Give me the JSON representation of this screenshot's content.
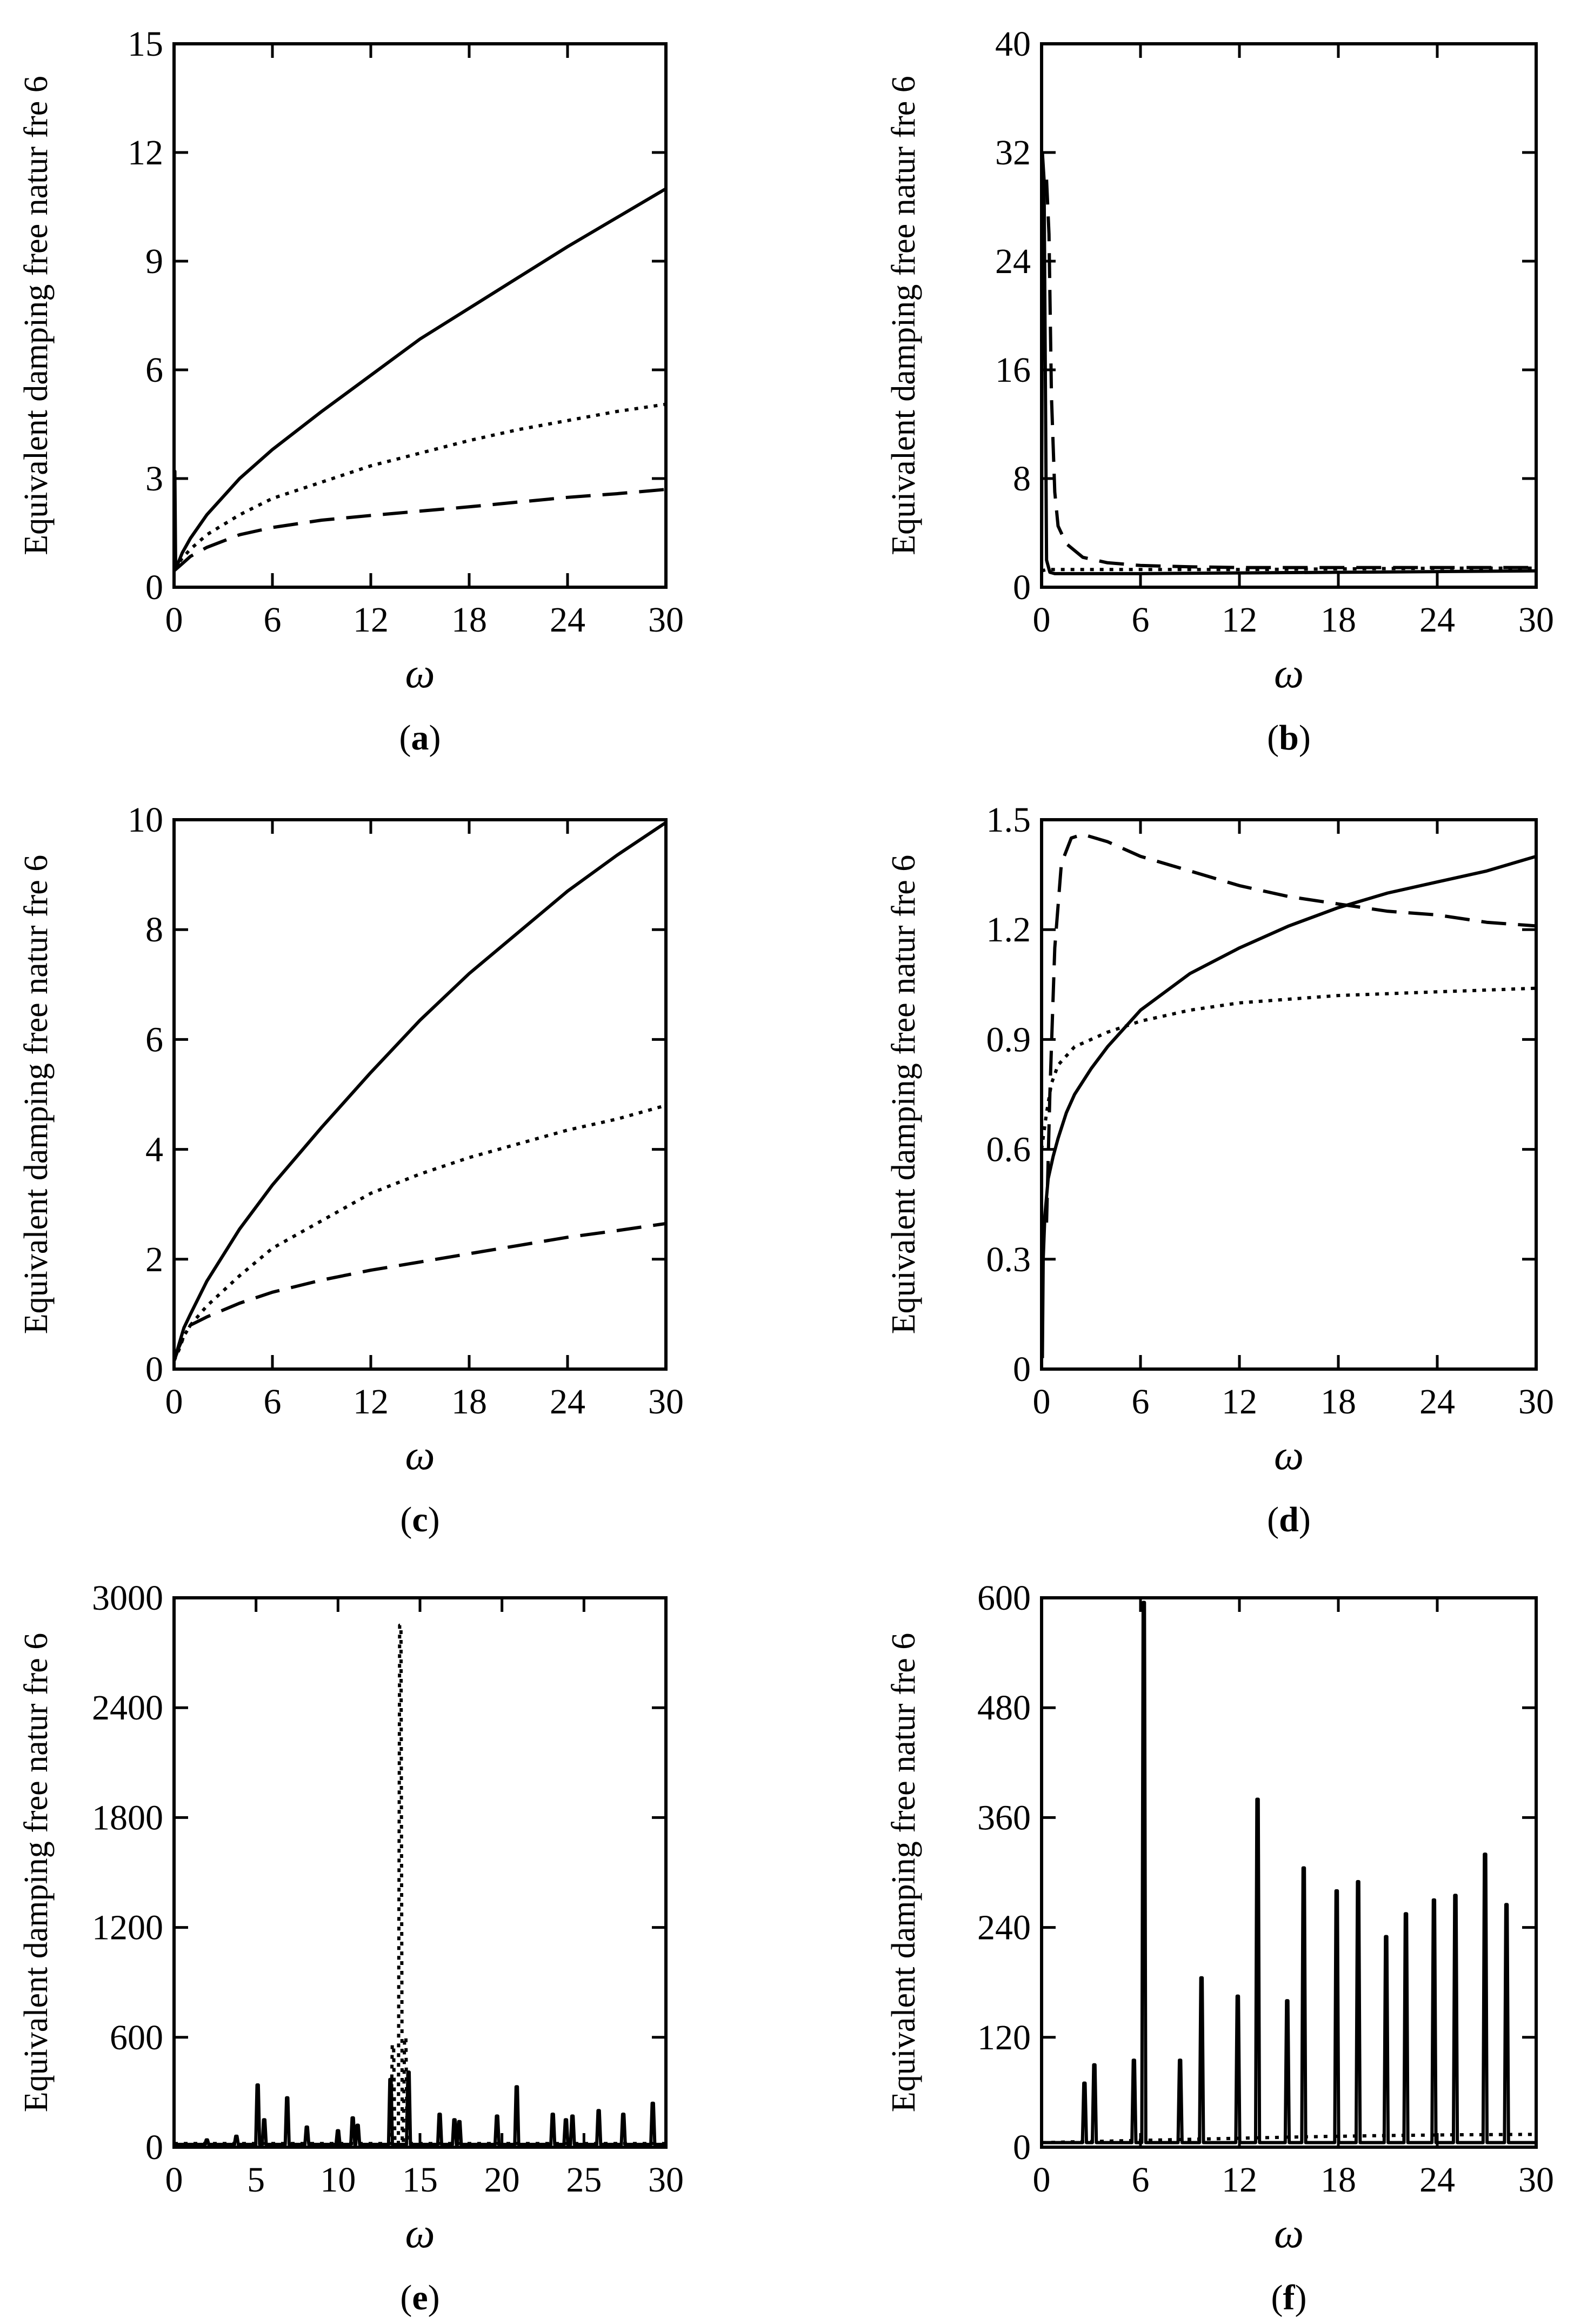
{
  "figure": {
    "panel_count": 6,
    "colors": {
      "ink": "#000000",
      "background": "#ffffff"
    }
  },
  "chart_data": [
    {
      "id": "a",
      "type": "line",
      "panel_label": "a",
      "title": "",
      "xlabel": "ω",
      "ylabel": "Equivalent damping free natur fre 6",
      "xlim": [
        0,
        30
      ],
      "ylim": [
        0,
        15
      ],
      "xticks": [
        0,
        6,
        12,
        18,
        24,
        30
      ],
      "yticks": [
        0,
        3,
        6,
        9,
        12,
        15
      ],
      "grid": false,
      "series": [
        {
          "name": "solid",
          "style": "solid",
          "x": [
            0,
            0.05,
            0.1,
            0.1,
            0.5,
            1,
            2,
            4,
            6,
            9,
            12,
            15,
            18,
            21,
            24,
            27,
            30
          ],
          "y": [
            3.2,
            3.2,
            0.5,
            0.5,
            0.95,
            1.35,
            2.0,
            3.0,
            3.8,
            4.85,
            5.85,
            6.85,
            7.7,
            8.55,
            9.4,
            10.2,
            11.0
          ]
        },
        {
          "name": "dotted",
          "style": "dotted",
          "x": [
            0,
            0.5,
            1,
            2,
            4,
            6,
            9,
            12,
            15,
            18,
            21,
            24,
            27,
            30
          ],
          "y": [
            0.5,
            0.8,
            1.05,
            1.45,
            2.0,
            2.45,
            2.9,
            3.35,
            3.7,
            4.05,
            4.35,
            4.6,
            4.85,
            5.05
          ]
        },
        {
          "name": "dashed",
          "style": "dashed",
          "x": [
            0,
            0.5,
            1,
            2,
            4,
            6,
            9,
            12,
            15,
            18,
            21,
            24,
            27,
            30
          ],
          "y": [
            0.45,
            0.65,
            0.85,
            1.1,
            1.45,
            1.65,
            1.85,
            1.98,
            2.1,
            2.22,
            2.35,
            2.48,
            2.58,
            2.7
          ]
        }
      ]
    },
    {
      "id": "b",
      "type": "line",
      "panel_label": "b",
      "title": "",
      "xlabel": "ω",
      "ylabel": "Equivalent damping free natur fre 6",
      "xlim": [
        0,
        30
      ],
      "ylim": [
        0,
        40
      ],
      "xticks": [
        0,
        6,
        12,
        18,
        24,
        30
      ],
      "yticks": [
        0,
        8,
        16,
        24,
        32,
        40
      ],
      "grid": false,
      "series": [
        {
          "name": "solid",
          "style": "solid",
          "x": [
            0,
            0.05,
            0.15,
            0.3,
            0.5,
            0.8,
            1.5,
            3,
            6,
            12,
            18,
            24,
            30
          ],
          "y": [
            0.9,
            32,
            30,
            2.0,
            1.1,
            1.0,
            1.0,
            1.0,
            1.0,
            1.05,
            1.1,
            1.15,
            1.2
          ]
        },
        {
          "name": "dotted",
          "style": "dotted",
          "x": [
            0,
            0.3,
            0.8,
            1.5,
            3,
            6,
            12,
            18,
            24,
            30
          ],
          "y": [
            1.2,
            1.3,
            1.3,
            1.3,
            1.3,
            1.3,
            1.3,
            1.35,
            1.4,
            1.4
          ]
        },
        {
          "name": "dashed",
          "style": "dashed",
          "x": [
            0.3,
            0.45,
            0.6,
            0.8,
            1.0,
            1.5,
            2.5,
            4,
            6,
            9,
            12,
            15,
            18,
            21,
            24,
            27,
            30
          ],
          "y": [
            30,
            26,
            14,
            7,
            4.5,
            3.2,
            2.2,
            1.8,
            1.6,
            1.5,
            1.45,
            1.45,
            1.45,
            1.45,
            1.45,
            1.45,
            1.45
          ]
        }
      ]
    },
    {
      "id": "c",
      "type": "line",
      "panel_label": "c",
      "title": "",
      "xlabel": "ω",
      "ylabel": "Equivalent damping free natur fre 6",
      "xlim": [
        0,
        30
      ],
      "ylim": [
        0,
        10
      ],
      "xticks": [
        0,
        6,
        12,
        18,
        24,
        30
      ],
      "yticks": [
        0,
        2,
        4,
        6,
        8,
        10
      ],
      "grid": false,
      "series": [
        {
          "name": "solid",
          "style": "solid",
          "x": [
            0,
            0.3,
            0.6,
            1,
            2,
            4,
            6,
            9,
            12,
            15,
            18,
            21,
            24,
            27,
            30
          ],
          "y": [
            0.15,
            0.45,
            0.75,
            1.0,
            1.6,
            2.55,
            3.35,
            4.4,
            5.4,
            6.35,
            7.2,
            7.95,
            8.7,
            9.35,
            9.95
          ]
        },
        {
          "name": "dotted",
          "style": "dotted",
          "x": [
            0,
            0.3,
            0.6,
            1,
            2,
            4,
            6,
            9,
            12,
            15,
            18,
            21,
            24,
            27,
            30
          ],
          "y": [
            0.15,
            0.35,
            0.6,
            0.8,
            1.15,
            1.7,
            2.2,
            2.7,
            3.2,
            3.55,
            3.85,
            4.1,
            4.35,
            4.55,
            4.8
          ]
        },
        {
          "name": "dashed",
          "style": "dashed",
          "x": [
            0,
            0.3,
            0.6,
            1,
            2,
            4,
            6,
            9,
            12,
            15,
            18,
            21,
            24,
            27,
            30
          ],
          "y": [
            0.15,
            0.4,
            0.6,
            0.8,
            0.95,
            1.2,
            1.4,
            1.62,
            1.8,
            1.95,
            2.1,
            2.25,
            2.4,
            2.52,
            2.65
          ]
        }
      ]
    },
    {
      "id": "d",
      "type": "line",
      "panel_label": "d",
      "title": "",
      "xlabel": "ω",
      "ylabel": "Equivalent damping free natur fre 6",
      "xlim": [
        0,
        30
      ],
      "ylim": [
        0,
        1.5
      ],
      "xticks": [
        0,
        6,
        12,
        18,
        24,
        30
      ],
      "yticks": [
        0,
        0.3,
        0.6,
        0.9,
        1.2,
        1.5
      ],
      "grid": false,
      "series": [
        {
          "name": "solid",
          "style": "solid",
          "x": [
            0.05,
            0.1,
            0.2,
            0.4,
            0.7,
            1,
            1.5,
            2,
            3,
            4,
            6,
            9,
            12,
            15,
            18,
            21,
            24,
            27,
            30
          ],
          "y": [
            0.03,
            0.3,
            0.42,
            0.52,
            0.58,
            0.63,
            0.7,
            0.75,
            0.82,
            0.88,
            0.98,
            1.08,
            1.15,
            1.21,
            1.26,
            1.3,
            1.33,
            1.36,
            1.4
          ]
        },
        {
          "name": "dotted",
          "style": "dotted",
          "x": [
            0,
            0.3,
            0.6,
            1,
            2,
            3,
            4,
            6,
            9,
            12,
            15,
            18,
            21,
            24,
            27,
            30
          ],
          "y": [
            0.6,
            0.7,
            0.78,
            0.83,
            0.88,
            0.9,
            0.92,
            0.95,
            0.98,
            1.0,
            1.01,
            1.02,
            1.025,
            1.03,
            1.035,
            1.04
          ]
        },
        {
          "name": "dashed",
          "style": "dashed",
          "x": [
            0.3,
            0.5,
            0.8,
            1.2,
            1.8,
            2.5,
            4,
            6,
            9,
            12,
            15,
            18,
            21,
            24,
            27,
            30
          ],
          "y": [
            0.4,
            0.75,
            1.15,
            1.38,
            1.45,
            1.46,
            1.44,
            1.4,
            1.36,
            1.32,
            1.29,
            1.27,
            1.25,
            1.24,
            1.22,
            1.21
          ]
        }
      ]
    },
    {
      "id": "e",
      "type": "line",
      "panel_label": "e",
      "title": "",
      "xlabel": "ω",
      "ylabel": "Equivalent damping free natur fre 6",
      "xlim": [
        0,
        30
      ],
      "ylim": [
        0,
        3000
      ],
      "xticks": [
        0,
        5,
        10,
        15,
        20,
        25,
        30
      ],
      "yticks": [
        0,
        600,
        1200,
        1800,
        2400,
        3000
      ],
      "grid": false,
      "series": [
        {
          "name": "solid",
          "style": "solid",
          "baseline": 15,
          "spikes": [
            [
              2,
              40
            ],
            [
              3.8,
              60
            ],
            [
              5.1,
              340
            ],
            [
              5.5,
              150
            ],
            [
              6.9,
              270
            ],
            [
              8.1,
              110
            ],
            [
              10,
              90
            ],
            [
              10.9,
              160
            ],
            [
              11.2,
              120
            ],
            [
              13.2,
              370
            ],
            [
              14.3,
              410
            ],
            [
              16.2,
              180
            ],
            [
              17.1,
              150
            ],
            [
              17.4,
              140
            ],
            [
              19.7,
              170
            ],
            [
              20.9,
              330
            ],
            [
              23.1,
              180
            ],
            [
              23.9,
              150
            ],
            [
              24.3,
              170
            ],
            [
              25.9,
              200
            ],
            [
              27.4,
              180
            ],
            [
              29.2,
              240
            ]
          ]
        },
        {
          "name": "dotted",
          "style": "dotted",
          "baseline": 20,
          "spikes": [
            [
              13.35,
              560
            ],
            [
              13.8,
              2850
            ],
            [
              14.1,
              600
            ]
          ]
        }
      ]
    },
    {
      "id": "f",
      "type": "line",
      "panel_label": "f",
      "title": "",
      "xlabel": "ω",
      "ylabel": "Equivalent damping free natur fre 6",
      "xlim": [
        0,
        30
      ],
      "ylim": [
        0,
        600
      ],
      "xticks": [
        0,
        6,
        12,
        18,
        24,
        30
      ],
      "yticks": [
        0,
        120,
        240,
        360,
        480,
        600
      ],
      "grid": false,
      "series": [
        {
          "name": "solid",
          "style": "solid",
          "baseline": 5,
          "spikes": [
            [
              2.6,
              70
            ],
            [
              3.2,
              90
            ],
            [
              5.6,
              95
            ],
            [
              6.2,
              595
            ],
            [
              8.4,
              95
            ],
            [
              9.7,
              185
            ],
            [
              11.9,
              165
            ],
            [
              13.1,
              380
            ],
            [
              14.9,
              160
            ],
            [
              15.9,
              305
            ],
            [
              17.9,
              280
            ],
            [
              19.2,
              290
            ],
            [
              20.9,
              230
            ],
            [
              22.1,
              255
            ],
            [
              23.8,
              270
            ],
            [
              25.1,
              275
            ],
            [
              26.9,
              320
            ],
            [
              28.2,
              265
            ]
          ]
        },
        {
          "name": "dotted",
          "style": "dotted",
          "x": [
            0,
            5,
            10,
            15,
            20,
            25,
            30
          ],
          "y": [
            5,
            7,
            9,
            11,
            12.5,
            13.5,
            14
          ]
        }
      ]
    }
  ]
}
